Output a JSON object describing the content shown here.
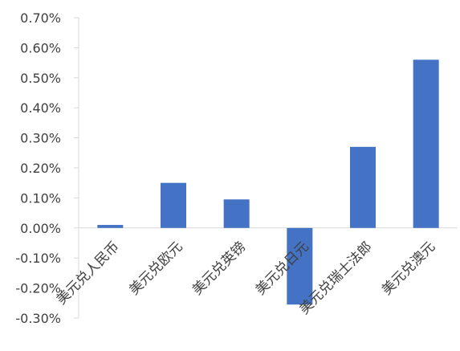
{
  "chart_data": {
    "type": "bar",
    "title": "",
    "xlabel": "",
    "ylabel": "",
    "categories": [
      "美元兑人民币",
      "美元兑欧元",
      "美元兑英镑",
      "美元兑日元",
      "美元兑瑞士法郎",
      "美元兑澳元"
    ],
    "values": [
      0.01,
      0.15,
      0.095,
      -0.255,
      0.27,
      0.56
    ],
    "unit": "%",
    "ylim": [
      -0.3,
      0.7
    ],
    "yticks": [
      "0.70%",
      "0.60%",
      "0.50%",
      "0.40%",
      "0.30%",
      "0.20%",
      "0.10%",
      "0.00%",
      "-0.10%",
      "-0.20%",
      "-0.30%"
    ],
    "ytick_values": [
      0.7,
      0.6,
      0.5,
      0.4,
      0.3,
      0.2,
      0.1,
      0.0,
      -0.1,
      -0.2,
      -0.3
    ],
    "grid": false,
    "legend": "none",
    "bar_color": "#4472C4",
    "axis_color": "#D9D9D9"
  }
}
